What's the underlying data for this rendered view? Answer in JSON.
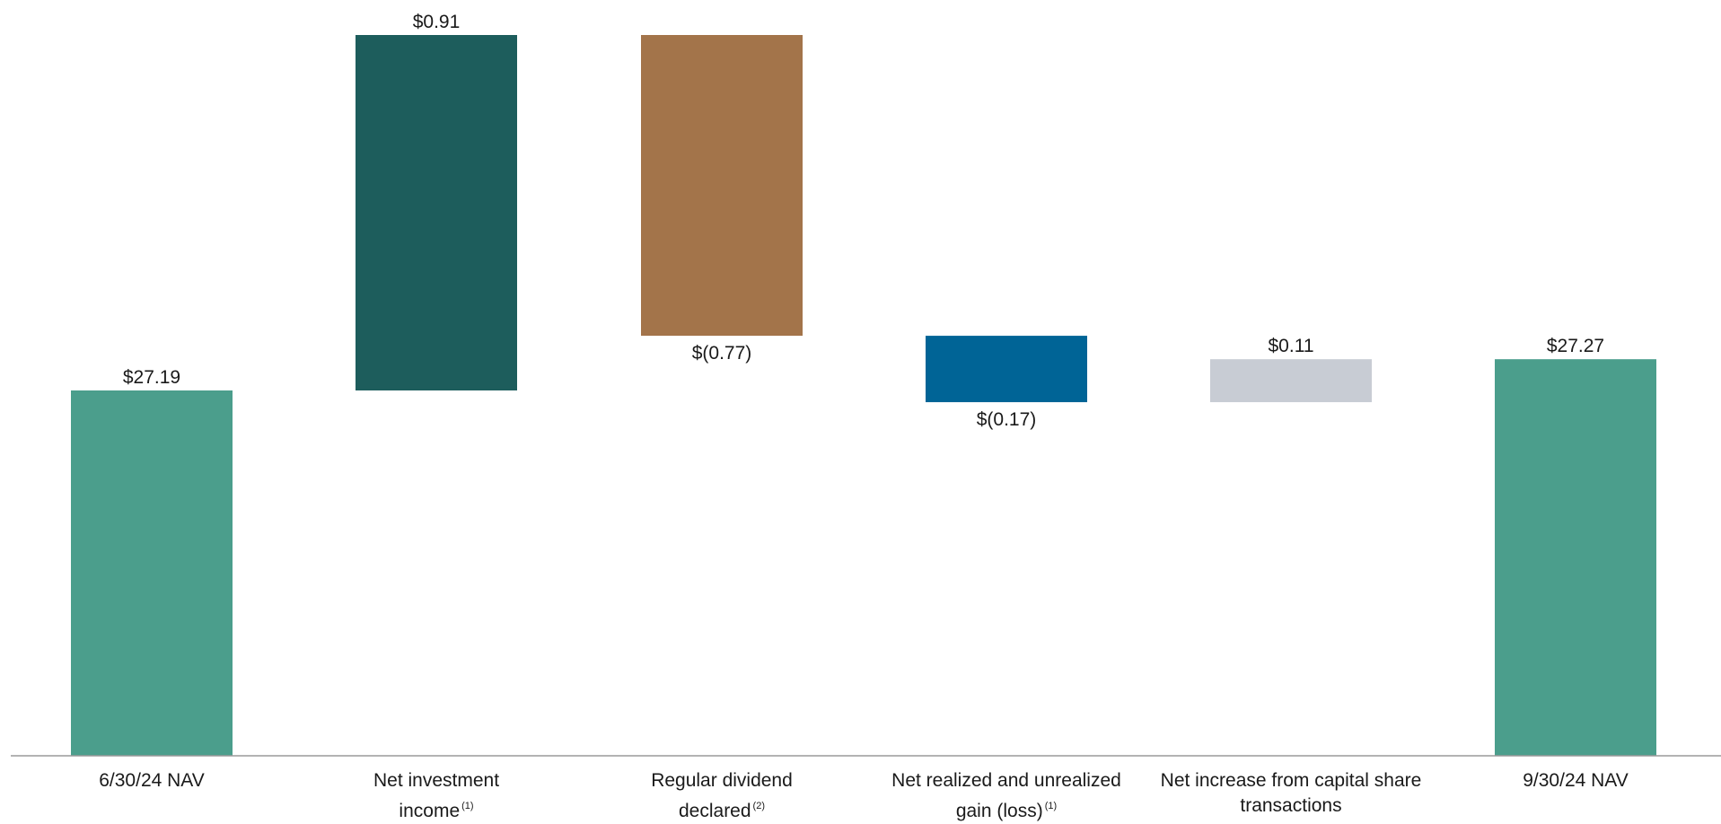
{
  "chart_data": {
    "type": "bar",
    "subtype": "waterfall",
    "categories": [
      {
        "lines": [
          "6/30/24 NAV"
        ],
        "footnote": ""
      },
      {
        "lines": [
          "Net investment",
          "income"
        ],
        "footnote": "(1)"
      },
      {
        "lines": [
          "Regular dividend",
          "declared"
        ],
        "footnote": "(2)"
      },
      {
        "lines": [
          "Net realized and unrealized",
          "gain (loss)"
        ],
        "footnote": "(1)"
      },
      {
        "lines": [
          "Net increase from capital share",
          "transactions"
        ],
        "footnote": ""
      },
      {
        "lines": [
          "9/30/24 NAV"
        ],
        "footnote": ""
      }
    ],
    "bars": [
      {
        "kind": "total",
        "value": 27.19,
        "label": "$27.19",
        "color": "#4b9e8c"
      },
      {
        "kind": "delta",
        "value": 0.91,
        "label": "$0.91",
        "color": "#1d5d5c"
      },
      {
        "kind": "delta",
        "value": -0.77,
        "label": "$(0.77)",
        "color": "#a3744a"
      },
      {
        "kind": "delta",
        "value": -0.17,
        "label": "$(0.17)",
        "color": "#006496"
      },
      {
        "kind": "delta",
        "value": 0.11,
        "label": "$0.11",
        "color": "#c8ccd4"
      },
      {
        "kind": "total",
        "value": 27.27,
        "label": "$27.27",
        "color": "#4b9e8c"
      }
    ],
    "axis_color": "#9a9a9a",
    "grid": false,
    "legend": "none"
  }
}
